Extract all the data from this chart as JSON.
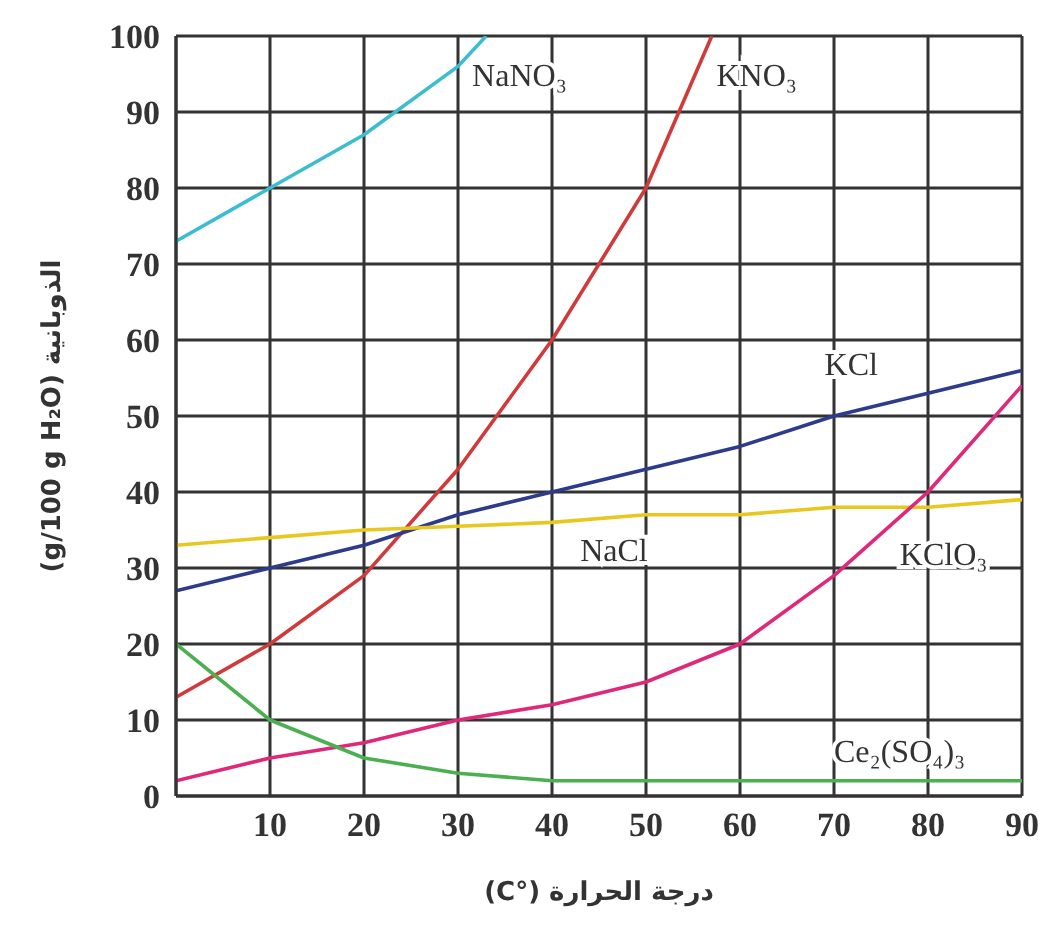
{
  "chart_data": {
    "type": "line",
    "xlabel": "درجة الحرارة (°C)",
    "ylabel": "الذوبانية (g/100 g H₂O)",
    "xlim": [
      0,
      90
    ],
    "xticks": [
      {
        "value": 0,
        "label": null
      },
      10,
      20,
      30,
      40,
      50,
      60,
      70,
      80,
      90
    ],
    "ylim": [
      0,
      100
    ],
    "yticks": [
      0,
      10,
      20,
      30,
      40,
      50,
      60,
      70,
      80,
      90,
      100
    ],
    "grid": true,
    "legend": false,
    "marker": "none",
    "line_style": "solid",
    "series": [
      {
        "name": "NaNO₃",
        "color": "#3bbccf",
        "x": [
          0,
          10,
          20,
          30,
          33
        ],
        "values": [
          73,
          80,
          87,
          96,
          100
        ]
      },
      {
        "name": "KNO₃",
        "color": "#d03a3a",
        "x": [
          0,
          10,
          20,
          30,
          40,
          50,
          57
        ],
        "values": [
          13,
          20,
          29,
          43,
          60,
          80,
          100
        ]
      },
      {
        "name": "KCl",
        "color": "#2e3a8c",
        "x": [
          0,
          10,
          20,
          30,
          40,
          50,
          60,
          70,
          80,
          90
        ],
        "values": [
          27,
          30,
          33,
          37,
          40,
          43,
          46,
          50,
          53,
          56
        ]
      },
      {
        "name": "NaCl",
        "color": "#e8c820",
        "x": [
          0,
          10,
          20,
          30,
          40,
          50,
          60,
          70,
          80,
          90
        ],
        "values": [
          33,
          34,
          35,
          35.5,
          36,
          37,
          37,
          38,
          38,
          39
        ]
      },
      {
        "name": "KClO₃",
        "color": "#e0287a",
        "x": [
          0,
          10,
          20,
          30,
          40,
          50,
          60,
          70,
          80,
          90
        ],
        "values": [
          2,
          5,
          7,
          10,
          12,
          15,
          20,
          29,
          40,
          54
        ]
      },
      {
        "name": "Ce₂(SO₄)₃",
        "color": "#4caf50",
        "x": [
          0,
          10,
          20,
          30,
          40,
          50,
          60,
          70,
          80,
          90
        ],
        "values": [
          20,
          10,
          5,
          3,
          2,
          2,
          2,
          2,
          2,
          2
        ]
      }
    ]
  }
}
